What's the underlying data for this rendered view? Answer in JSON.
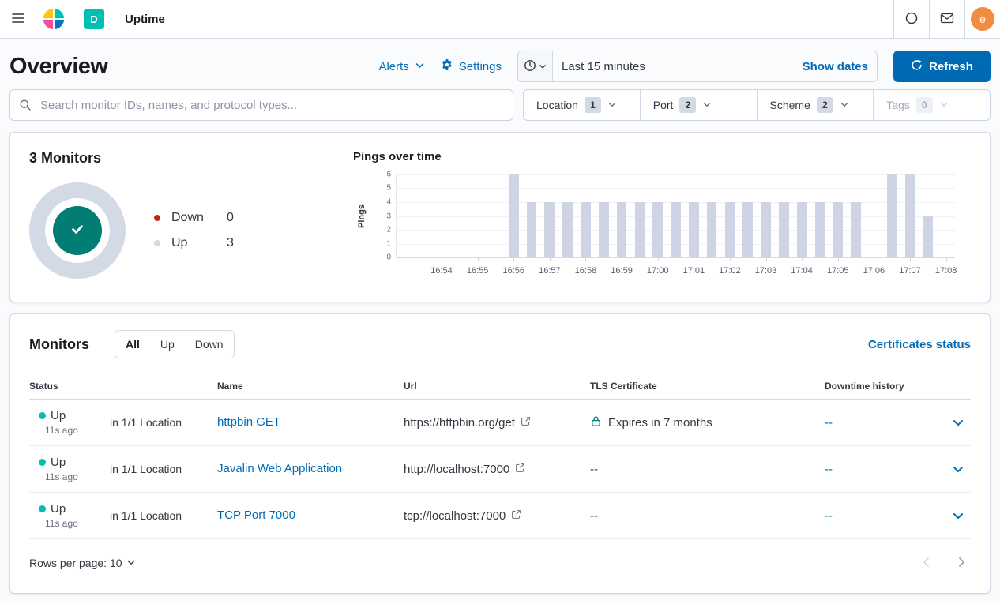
{
  "topbar": {
    "app_title": "Uptime",
    "deployment_badge": "D",
    "avatar_initial": "e"
  },
  "header": {
    "page_title": "Overview",
    "alerts_label": "Alerts",
    "settings_label": "Settings",
    "time_range": "Last 15 minutes",
    "show_dates_label": "Show dates",
    "refresh_label": "Refresh"
  },
  "filters": {
    "search_placeholder": "Search monitor IDs, names, and protocol types...",
    "items": [
      {
        "label": "Location",
        "count": "1",
        "disabled": false
      },
      {
        "label": "Port",
        "count": "2",
        "disabled": false
      },
      {
        "label": "Scheme",
        "count": "2",
        "disabled": false
      },
      {
        "label": "Tags",
        "count": "0",
        "disabled": true
      }
    ]
  },
  "summary": {
    "title": "3 Monitors",
    "legend": [
      {
        "label": "Down",
        "value": "0",
        "color": "#bd271e"
      },
      {
        "label": "Up",
        "value": "3",
        "color": "#d3dae6"
      }
    ]
  },
  "chart_data": {
    "type": "bar",
    "title": "Pings over time",
    "ylabel": "Pings",
    "ylim": [
      0,
      6
    ],
    "yticks": [
      0,
      1,
      2,
      3,
      4,
      5,
      6
    ],
    "grid": true,
    "legend_position": "none",
    "bar_color": "#cfd4e5",
    "x_slot_seconds": 30,
    "x_domain_start": "16:53:00",
    "values": [
      0,
      0,
      0,
      0,
      0,
      0,
      6,
      4,
      4,
      4,
      4,
      4,
      4,
      4,
      4,
      4,
      4,
      4,
      4,
      4,
      4,
      4,
      4,
      4,
      4,
      4,
      0,
      6,
      6,
      3,
      0
    ],
    "xticks": [
      {
        "label": "16:54",
        "slot": 2
      },
      {
        "label": "16:55",
        "slot": 4
      },
      {
        "label": "16:56",
        "slot": 6
      },
      {
        "label": "16:57",
        "slot": 8
      },
      {
        "label": "16:58",
        "slot": 10
      },
      {
        "label": "16:59",
        "slot": 12
      },
      {
        "label": "17:00",
        "slot": 14
      },
      {
        "label": "17:01",
        "slot": 16
      },
      {
        "label": "17:02",
        "slot": 18
      },
      {
        "label": "17:03",
        "slot": 20
      },
      {
        "label": "17:04",
        "slot": 22
      },
      {
        "label": "17:05",
        "slot": 24
      },
      {
        "label": "17:06",
        "slot": 26
      },
      {
        "label": "17:07",
        "slot": 28
      },
      {
        "label": "17:08",
        "slot": 30
      }
    ]
  },
  "monitors": {
    "title": "Monitors",
    "tabs": [
      "All",
      "Up",
      "Down"
    ],
    "selected_tab": "All",
    "certificates_link": "Certificates status",
    "columns": [
      "Status",
      "Name",
      "Url",
      "TLS Certificate",
      "Downtime history"
    ],
    "rows": [
      {
        "status": "Up",
        "ago": "11s ago",
        "location": "in 1/1 Location",
        "name": "httpbin GET",
        "url": "https://httpbin.org/get",
        "tls": "Expires in 7 months",
        "downtime": "--"
      },
      {
        "status": "Up",
        "ago": "11s ago",
        "location": "in 1/1 Location",
        "name": "Javalin Web Application",
        "url": "http://localhost:7000",
        "tls": "--",
        "downtime": "--"
      },
      {
        "status": "Up",
        "ago": "11s ago",
        "location": "in 1/1 Location",
        "name": "TCP Port 7000",
        "url": "tcp://localhost:7000",
        "tls": "--",
        "downtime": "--"
      }
    ],
    "rows_per_page_label": "Rows per page: 10"
  },
  "colors": {
    "primary": "#006bb4",
    "success": "#00bfb3",
    "danger": "#bd271e",
    "check_circle": "#017d73",
    "bar": "#cfd4e5",
    "avatar": "#f18d43",
    "deployment_badge": "#00bfb3"
  },
  "icons": {
    "menu": "hamburger",
    "elastic-logo": "colored-wedges",
    "help": "ring",
    "newsfeed": "envelope",
    "settings": "gear",
    "time": "clock",
    "refresh": "circular-arrow",
    "search": "magnifier",
    "check": "checkmark",
    "lock": "padlock",
    "external": "external-link",
    "chevron": "chevron-down"
  }
}
